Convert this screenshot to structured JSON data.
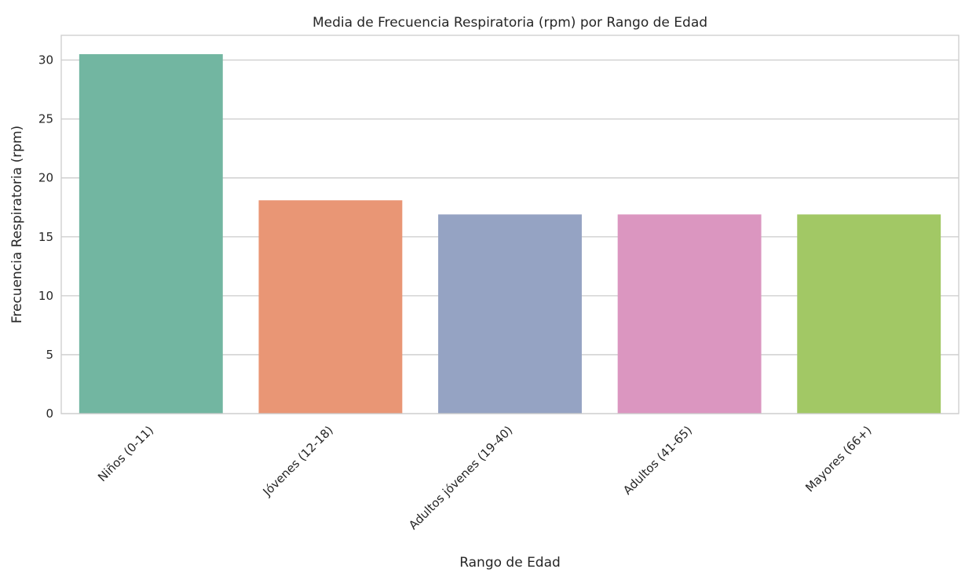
{
  "chart_data": {
    "type": "bar",
    "title": "Media de Frecuencia Respiratoria (rpm) por Rango de Edad",
    "xlabel": "Rango de Edad",
    "ylabel": "Frecuencia Respiratoria (rpm)",
    "categories": [
      "Niños (0-11)",
      "Jóvenes (12-18)",
      "Adultos jóvenes (19-40)",
      "Adultos (41-65)",
      "Mayores (66+)"
    ],
    "values": [
      30.5,
      18.1,
      16.9,
      16.9,
      16.9
    ],
    "colors": [
      "#72b6a1",
      "#e99675",
      "#95a3c3",
      "#db96c0",
      "#a2c865"
    ],
    "ylim": [
      0,
      32.1
    ],
    "yticks": [
      0,
      5,
      10,
      15,
      20,
      25,
      30
    ],
    "grid": "horizontal",
    "legend": "none"
  }
}
